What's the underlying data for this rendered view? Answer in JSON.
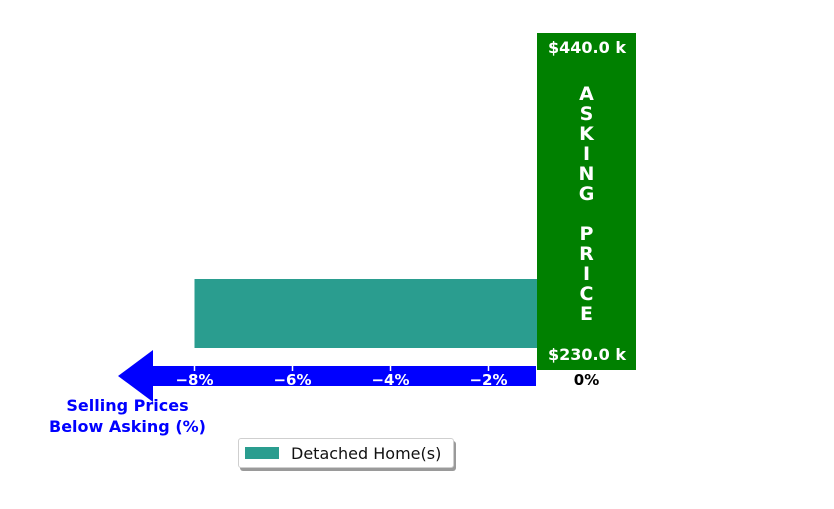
{
  "chart_data": {
    "type": "bar",
    "orientation": "horizontal",
    "series": [
      {
        "name": "Detached Home(s)",
        "color": "#2a9d8f",
        "values": [
          -8.0,
          0.2,
          0.2
        ]
      }
    ],
    "x_ticks": [
      -8,
      -6,
      -4,
      -2,
      0
    ],
    "x_tick_labels": [
      "−8%",
      "−6%",
      "−4%",
      "−2%",
      "0%"
    ],
    "xlim": [
      -8.0,
      0.2
    ],
    "xlabel": "Selling Prices\nBelow Asking (%)",
    "asking_band": {
      "top_label": "$440.0 k",
      "bottom_label": "$230.0 k",
      "text": "ASKING PRICE",
      "color": "#008000"
    },
    "arrow_color": "#0000ff",
    "legend": {
      "placement": "bottom-center",
      "entries": [
        "Detached Home(s)"
      ]
    },
    "grid": false
  }
}
